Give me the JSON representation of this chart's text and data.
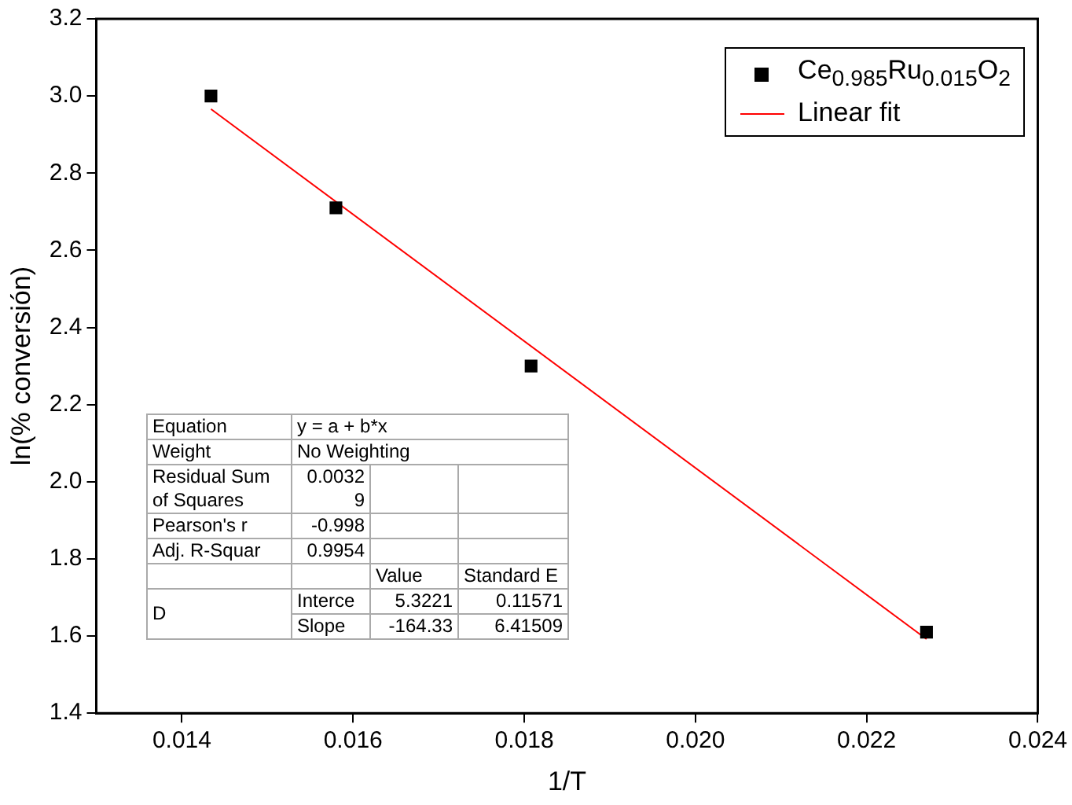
{
  "chart_data": {
    "type": "scatter",
    "xlabel": "1/T",
    "ylabel": "ln(% conversión)",
    "xlim": [
      0.013,
      0.024
    ],
    "ylim": [
      1.4,
      3.2
    ],
    "xticks": [
      {
        "value": 0.014,
        "label": "0.014"
      },
      {
        "value": 0.016,
        "label": "0.016"
      },
      {
        "value": 0.018,
        "label": "0.018"
      },
      {
        "value": 0.02,
        "label": "0.020"
      },
      {
        "value": 0.022,
        "label": "0.022"
      },
      {
        "value": 0.024,
        "label": "0.024"
      }
    ],
    "yticks": [
      {
        "value": 1.4,
        "label": "1.4"
      },
      {
        "value": 1.6,
        "label": "1.6"
      },
      {
        "value": 1.8,
        "label": "1.8"
      },
      {
        "value": 2.0,
        "label": "2.0"
      },
      {
        "value": 2.2,
        "label": "2.2"
      },
      {
        "value": 2.4,
        "label": "2.4"
      },
      {
        "value": 2.6,
        "label": "2.6"
      },
      {
        "value": 2.8,
        "label": "2.8"
      },
      {
        "value": 3.0,
        "label": "3.0"
      },
      {
        "value": 3.2,
        "label": "3.2"
      }
    ],
    "series": [
      {
        "name": "Ce$_{0.985}$Ru$_{0.015}$O$_{2}$",
        "marker": "square",
        "color": "#000000",
        "x": [
          0.01434,
          0.0158,
          0.01808,
          0.0227
        ],
        "values": [
          3.0,
          2.71,
          2.3,
          1.61
        ]
      },
      {
        "name": "Linear fit",
        "type": "line",
        "marker": "none",
        "color": "#ff0000",
        "x": [
          0.01434,
          0.0227
        ],
        "values": [
          2.966,
          1.592
        ]
      }
    ],
    "legend": "top right",
    "grid": false,
    "annotations": [
      "Equation",
      "y = a + b*x",
      "Weight",
      "No Weighting",
      "Residual Sum of Squares",
      "0.00329",
      "Pearson's r",
      "-0.998",
      "Adj. R-Squar",
      "0.9954",
      "Value",
      "Standard E",
      "D",
      "Interce",
      "5.3221",
      "0.11571",
      "Slope",
      "-164.33",
      "6.41509"
    ]
  }
}
